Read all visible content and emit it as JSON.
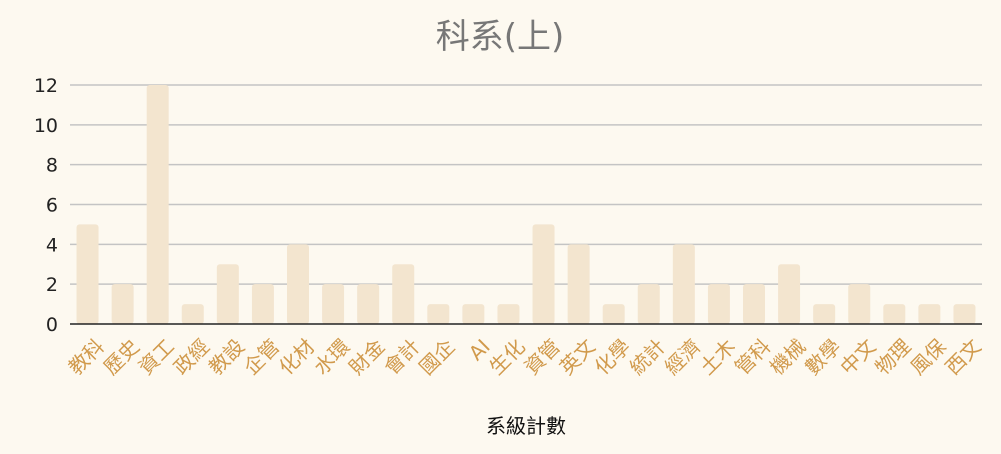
{
  "chart_data": {
    "type": "bar",
    "title": "科系(上)",
    "xlabel": "系級計數",
    "ylabel": "",
    "categories": [
      "教科",
      "歷史",
      "資工",
      "政經",
      "教設",
      "企管",
      "化材",
      "水環",
      "財金",
      "會計",
      "國企",
      "AI",
      "生化",
      "資管",
      "英文",
      "化學",
      "統計",
      "經濟",
      "土木",
      "管科",
      "機械",
      "數學",
      "中文",
      "物理",
      "風保",
      "西文"
    ],
    "values": [
      5,
      2,
      12,
      1,
      3,
      2,
      4,
      2,
      2,
      3,
      1,
      1,
      1,
      5,
      4,
      1,
      2,
      4,
      2,
      2,
      3,
      1,
      2,
      1,
      1,
      1
    ],
    "ylim": [
      0,
      12
    ],
    "yticks": [
      0,
      2,
      4,
      6,
      8,
      10,
      12
    ],
    "grid": true,
    "colors": {
      "bar": "#f3e5cf",
      "tick_label_x": "#d19a4c",
      "tick_label_y": "#222222",
      "title": "#777777",
      "grid": "#c4c4c4",
      "axis": "#222222",
      "background": "#fdf9f0"
    }
  }
}
